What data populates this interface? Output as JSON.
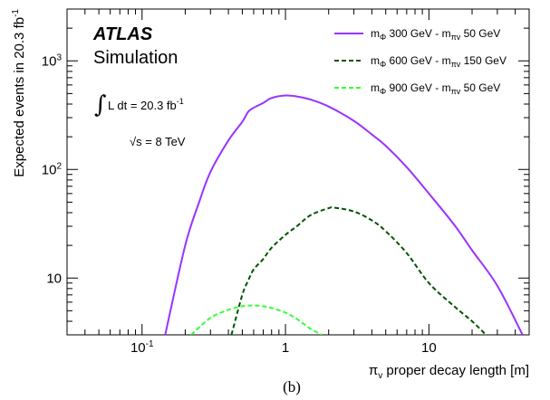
{
  "chart_data": {
    "type": "line",
    "xlabel": "π",
    "xlabel_sub": "v",
    "xlabel_rest": " proper decay length [m]",
    "ylabel": "Expected events in 20.3 fb",
    "ylabel_sup": "-1",
    "xscale": "log",
    "yscale": "log",
    "xlim": [
      0.03,
      50
    ],
    "ylim": [
      3,
      3000
    ],
    "x_ticks": [
      {
        "value": 0.1,
        "base": "10",
        "exp": "-1"
      },
      {
        "value": 1,
        "base": "1",
        "exp": ""
      },
      {
        "value": 10,
        "base": "10",
        "exp": ""
      }
    ],
    "y_ticks": [
      {
        "value": 10,
        "base": "10",
        "exp": ""
      },
      {
        "value": 100,
        "base": "10",
        "exp": "2"
      },
      {
        "value": 1000,
        "base": "10",
        "exp": "3"
      }
    ],
    "grid": false,
    "legend_position": "top-right",
    "series": [
      {
        "name": "mΦ 300 GeV - mπv 50 GeV",
        "legend": {
          "m1": "m",
          "s1": "Φ",
          "t1": " 300 GeV - ",
          "m2": "m",
          "s2": "πv",
          "t2": " 50 GeV"
        },
        "color": "#9933ff",
        "dash": "solid",
        "x": [
          0.145,
          0.2,
          0.25,
          0.3,
          0.4,
          0.5,
          0.55,
          0.6,
          0.7,
          0.8,
          1.0,
          1.2,
          1.5,
          2.0,
          3.0,
          4.0,
          5.0,
          7.0,
          10.0,
          15.0,
          20.0,
          30.0,
          45.0
        ],
        "y": [
          3,
          20,
          50,
          95,
          185,
          275,
          340,
          370,
          410,
          455,
          480,
          470,
          440,
          380,
          280,
          210,
          165,
          105,
          60,
          31,
          18,
          8.5,
          3
        ]
      },
      {
        "name": "mΦ 600 GeV - mπv 150 GeV",
        "legend": {
          "m1": "m",
          "s1": "Φ",
          "t1": " 600 GeV - ",
          "m2": "m",
          "s2": "πv",
          "t2": " 150 GeV"
        },
        "color": "#005500",
        "dash": "dashed",
        "x": [
          0.42,
          0.5,
          0.55,
          0.6,
          0.7,
          0.8,
          1.0,
          1.2,
          1.5,
          2.0,
          2.2,
          3.0,
          4.0,
          5.0,
          7.0,
          10.0,
          15.0,
          20.0,
          25.0
        ],
        "y": [
          3,
          7,
          9.5,
          12,
          15,
          19,
          25,
          30,
          38,
          44,
          44.5,
          41,
          34,
          27,
          17,
          9,
          5.5,
          4,
          3
        ]
      },
      {
        "name": "mΦ 900 GeV - mπv 50 GeV",
        "legend": {
          "m1": "m",
          "s1": "Φ",
          "t1": " 900 GeV - ",
          "m2": "m",
          "s2": "πv",
          "t2": " 50 GeV"
        },
        "color": "#33ff33",
        "dash": "dashed",
        "x": [
          0.22,
          0.3,
          0.4,
          0.5,
          0.6,
          0.7,
          0.8,
          1.0,
          1.2,
          1.5,
          1.8
        ],
        "y": [
          3,
          4.3,
          5.1,
          5.5,
          5.6,
          5.5,
          5.3,
          4.8,
          4.2,
          3.4,
          3
        ]
      }
    ],
    "annotations": {
      "atlas": "ATLAS",
      "simulation": "Simulation",
      "lumi_integral": "∫",
      "lumi_text": "L dt = 20.3 fb",
      "lumi_sup": "-1",
      "energy_root": "√",
      "energy_s": "s",
      "energy_text": " = 8 TeV"
    },
    "caption": "(b)"
  }
}
